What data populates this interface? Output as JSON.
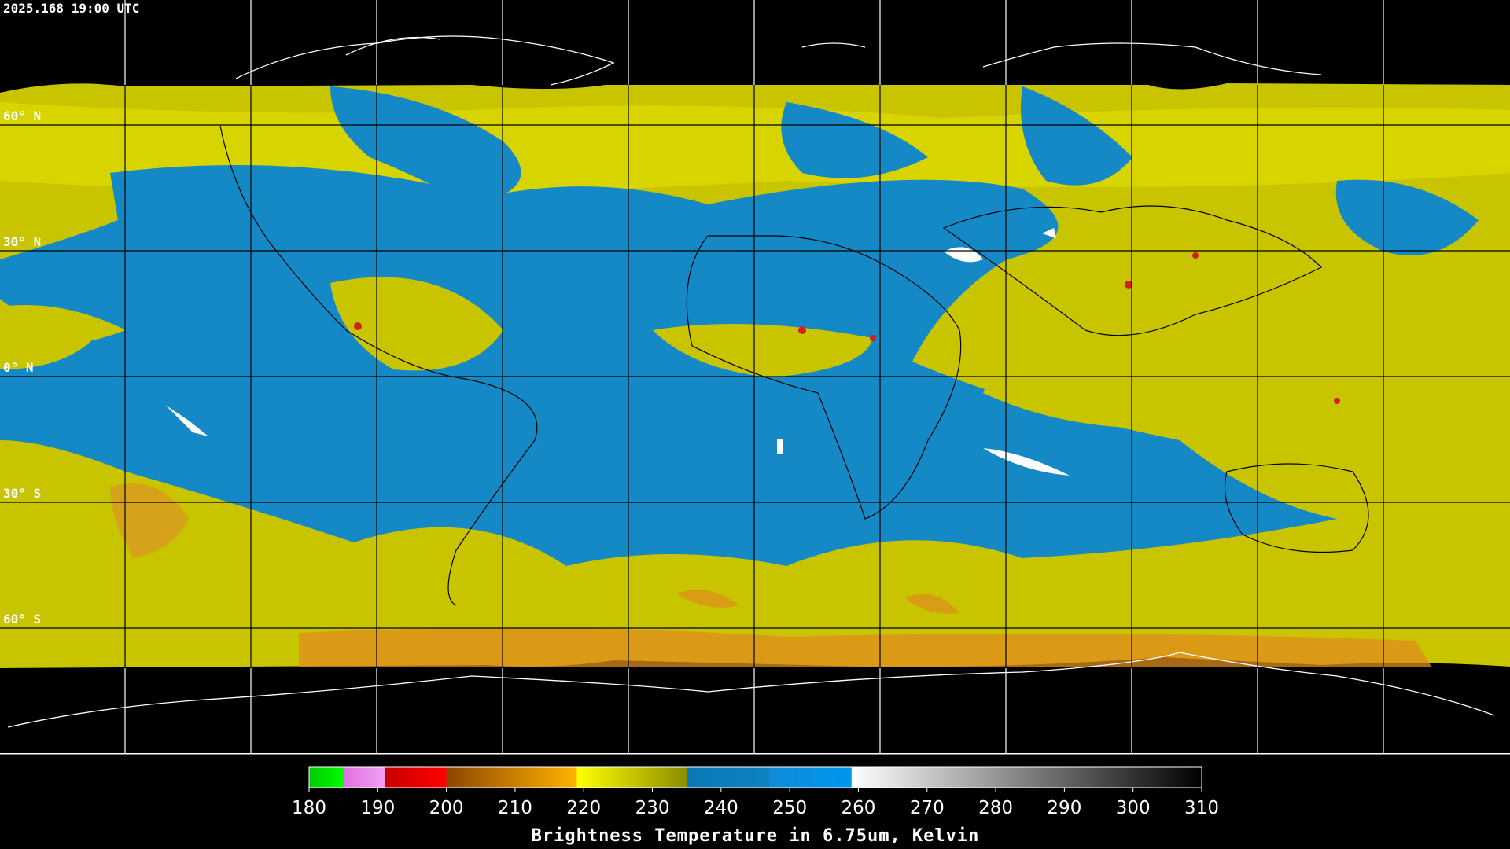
{
  "header": {
    "timestamp": "2025.168 19:00 UTC"
  },
  "map": {
    "latitude_labels": [
      {
        "value": 60,
        "label": "60° N"
      },
      {
        "value": 30,
        "label": "30° N"
      },
      {
        "value": 0,
        "label": "0° N"
      },
      {
        "value": -30,
        "label": "30° S"
      },
      {
        "value": -60,
        "label": "60° S"
      }
    ]
  },
  "colorbar": {
    "range": [
      180,
      310
    ],
    "ticks": [
      180,
      190,
      200,
      210,
      220,
      230,
      240,
      250,
      260,
      270,
      280,
      290,
      300,
      310
    ],
    "label": "Brightness Temperature in 6.75um, Kelvin",
    "segments": [
      {
        "from": 180,
        "to": 185,
        "colors": [
          "#00c800",
          "#00ff00"
        ]
      },
      {
        "from": 185,
        "to": 191,
        "colors": [
          "#e070e0",
          "#f0a0f0"
        ]
      },
      {
        "from": 191,
        "to": 200,
        "colors": [
          "#c80000",
          "#ff0000"
        ]
      },
      {
        "from": 200,
        "to": 219,
        "colors": [
          "#8c4600",
          "#ffb400"
        ]
      },
      {
        "from": 219,
        "to": 235,
        "colors": [
          "#ffff00",
          "#8c8c00"
        ]
      },
      {
        "from": 235,
        "to": 247,
        "colors": [
          "#0a78b4",
          "#0f82c3"
        ]
      },
      {
        "from": 247,
        "to": 259,
        "colors": [
          "#0f8cd7",
          "#0096f0"
        ]
      },
      {
        "from": 259,
        "to": 310,
        "colors": [
          "#ffffff",
          "#000000"
        ]
      }
    ]
  }
}
